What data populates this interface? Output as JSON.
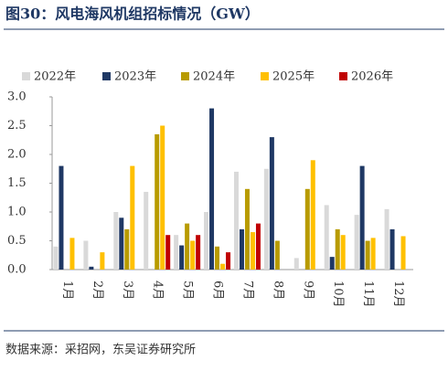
{
  "chart_data": {
    "type": "bar",
    "title": "图30：风电海风机组招标情况（GW）",
    "source": "数据来源：采招网，东吴证券研究所",
    "categories": [
      "1月",
      "2月",
      "3月",
      "4月",
      "5月",
      "6月",
      "7月",
      "8月",
      "9月",
      "10月",
      "11月",
      "12月"
    ],
    "series": [
      {
        "name": "2022年",
        "color": "#d9d9d9",
        "values": [
          0.4,
          0.5,
          1.0,
          1.35,
          0.6,
          1.0,
          1.7,
          1.75,
          0.2,
          1.12,
          0.95,
          1.05
        ]
      },
      {
        "name": "2023年",
        "color": "#1f3864",
        "values": [
          1.8,
          0.05,
          0.9,
          null,
          0.42,
          2.8,
          0.7,
          2.3,
          null,
          0.22,
          1.8,
          0.7
        ]
      },
      {
        "name": "2024年",
        "color": "#b89b00",
        "values": [
          null,
          null,
          0.7,
          2.35,
          0.8,
          0.4,
          1.4,
          0.5,
          1.4,
          0.7,
          0.5,
          null
        ]
      },
      {
        "name": "2025年",
        "color": "#ffc000",
        "values": [
          0.55,
          0.3,
          1.8,
          2.5,
          0.5,
          0.1,
          0.65,
          null,
          1.9,
          0.6,
          0.55,
          0.58
        ]
      },
      {
        "name": "2026年",
        "color": "#c00000",
        "values": [
          null,
          null,
          null,
          0.6,
          0.6,
          0.3,
          0.8,
          null,
          null,
          null,
          null,
          null
        ]
      }
    ],
    "ylim": [
      0,
      3
    ],
    "yticks": [
      {
        "value": 0,
        "label": "0.0"
      },
      0.5,
      {
        "value": 1,
        "label": "1.0"
      },
      1.5,
      {
        "value": 2,
        "label": "2.0"
      },
      2.5,
      {
        "value": 3,
        "label": "3.0"
      }
    ]
  }
}
